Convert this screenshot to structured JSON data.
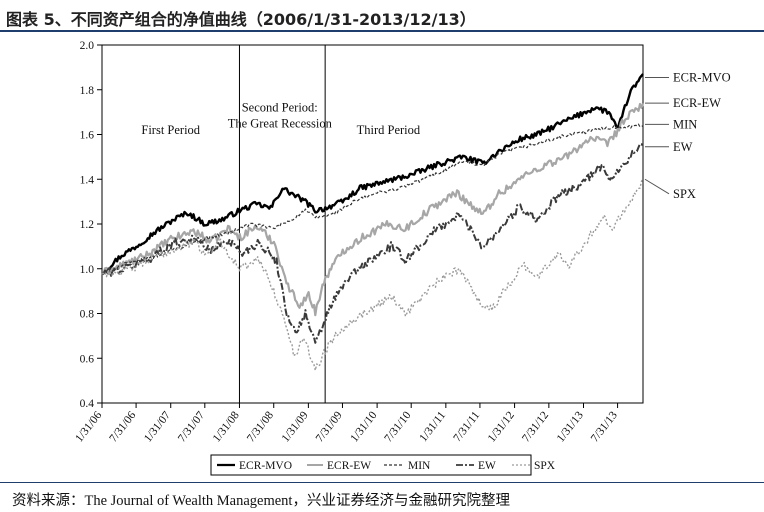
{
  "header": {
    "title": "图表 5、不同资产组合的净值曲线（2006/1/31-2013/12/13）"
  },
  "footer": {
    "source": "资料来源：The Journal of Wealth Management，兴业证券经济与金融研究院整理"
  },
  "chart_data": {
    "type": "line",
    "ylim": [
      0.4,
      2.0
    ],
    "yticks": [
      "0.4",
      "0.6",
      "0.8",
      "1.0",
      "1.2",
      "1.4",
      "1.6",
      "1.8",
      "2.0"
    ],
    "xrange": [
      "2006-01-31",
      "2013-12-13"
    ],
    "xticks": [
      "1/31/06",
      "7/31/06",
      "1/31/07",
      "7/31/07",
      "1/31/08",
      "7/31/08",
      "1/31/09",
      "7/31/09",
      "1/31/10",
      "7/31/10",
      "1/31/11",
      "7/31/11",
      "1/31/12",
      "7/31/12",
      "1/31/13",
      "7/31/13"
    ],
    "period_dividers": [
      "2008-01-31",
      "2009-04-30"
    ],
    "periods": [
      {
        "label": "First Period",
        "center": "2007-01-31",
        "y": 1.62
      },
      {
        "label": "Second Period:",
        "center": "2008-09-01",
        "y": 1.72
      },
      {
        "label": "The Great Recession",
        "center": "2008-09-01",
        "y": 1.65
      },
      {
        "label": "Third Period",
        "center": "2010-04-01",
        "y": 1.62
      }
    ],
    "series": [
      {
        "name": "ECR-MVO",
        "color": "#000000",
        "width": 2.4,
        "dash": "",
        "noise": 0.012,
        "points": [
          [
            "2006-01-31",
            0.98
          ],
          [
            "2006-05-15",
            1.06
          ],
          [
            "2006-08-01",
            1.1
          ],
          [
            "2006-11-01",
            1.16
          ],
          [
            "2007-02-15",
            1.22
          ],
          [
            "2007-05-01",
            1.25
          ],
          [
            "2007-08-01",
            1.2
          ],
          [
            "2007-11-01",
            1.22
          ],
          [
            "2008-01-31",
            1.26
          ],
          [
            "2008-05-01",
            1.29
          ],
          [
            "2008-07-15",
            1.27
          ],
          [
            "2008-09-15",
            1.36
          ],
          [
            "2008-11-15",
            1.33
          ],
          [
            "2009-01-15",
            1.3
          ],
          [
            "2009-03-09",
            1.26
          ],
          [
            "2009-05-01",
            1.27
          ],
          [
            "2009-08-01",
            1.3
          ],
          [
            "2009-11-01",
            1.36
          ],
          [
            "2010-02-01",
            1.38
          ],
          [
            "2010-05-01",
            1.4
          ],
          [
            "2010-08-01",
            1.42
          ],
          [
            "2011-01-01",
            1.47
          ],
          [
            "2011-05-01",
            1.5
          ],
          [
            "2011-08-15",
            1.47
          ],
          [
            "2011-11-01",
            1.52
          ],
          [
            "2012-03-01",
            1.58
          ],
          [
            "2012-06-01",
            1.6
          ],
          [
            "2012-10-01",
            1.65
          ],
          [
            "2013-01-15",
            1.69
          ],
          [
            "2013-04-01",
            1.72
          ],
          [
            "2013-06-15",
            1.7
          ],
          [
            "2013-08-01",
            1.62
          ],
          [
            "2013-10-01",
            1.78
          ],
          [
            "2013-12-13",
            1.87
          ]
        ]
      },
      {
        "name": "ECR-EW",
        "color": "#a6a6a6",
        "width": 2.2,
        "dash": "",
        "noise": 0.018,
        "points": [
          [
            "2006-01-31",
            0.98
          ],
          [
            "2006-06-01",
            1.02
          ],
          [
            "2006-09-01",
            1.05
          ],
          [
            "2007-02-01",
            1.13
          ],
          [
            "2007-06-01",
            1.17
          ],
          [
            "2007-09-01",
            1.12
          ],
          [
            "2007-12-01",
            1.18
          ],
          [
            "2008-02-01",
            1.14
          ],
          [
            "2008-05-01",
            1.19
          ],
          [
            "2008-08-01",
            1.12
          ],
          [
            "2008-10-15",
            0.92
          ],
          [
            "2008-12-15",
            0.84
          ],
          [
            "2009-02-01",
            0.88
          ],
          [
            "2009-03-09",
            0.81
          ],
          [
            "2009-05-01",
            0.96
          ],
          [
            "2009-08-01",
            1.08
          ],
          [
            "2009-12-01",
            1.15
          ],
          [
            "2010-04-01",
            1.2
          ],
          [
            "2010-07-01",
            1.18
          ],
          [
            "2010-12-01",
            1.28
          ],
          [
            "2011-04-01",
            1.34
          ],
          [
            "2011-08-15",
            1.24
          ],
          [
            "2011-11-01",
            1.33
          ],
          [
            "2012-04-01",
            1.42
          ],
          [
            "2012-07-01",
            1.46
          ],
          [
            "2012-11-01",
            1.5
          ],
          [
            "2013-03-01",
            1.58
          ],
          [
            "2013-06-15",
            1.56
          ],
          [
            "2013-09-01",
            1.66
          ],
          [
            "2013-12-13",
            1.74
          ]
        ]
      },
      {
        "name": "MIN",
        "color": "#333333",
        "width": 1.2,
        "dash": "3,2",
        "noise": 0.008,
        "points": [
          [
            "2006-01-31",
            0.98
          ],
          [
            "2006-06-01",
            1.02
          ],
          [
            "2006-12-01",
            1.06
          ],
          [
            "2007-06-01",
            1.12
          ],
          [
            "2007-12-01",
            1.16
          ],
          [
            "2008-04-01",
            1.2
          ],
          [
            "2008-08-01",
            1.18
          ],
          [
            "2008-11-01",
            1.22
          ],
          [
            "2009-01-15",
            1.26
          ],
          [
            "2009-03-09",
            1.23
          ],
          [
            "2009-06-01",
            1.24
          ],
          [
            "2009-10-01",
            1.3
          ],
          [
            "2010-02-01",
            1.34
          ],
          [
            "2010-06-01",
            1.36
          ],
          [
            "2010-12-01",
            1.42
          ],
          [
            "2011-05-01",
            1.48
          ],
          [
            "2011-08-15",
            1.46
          ],
          [
            "2011-12-01",
            1.52
          ],
          [
            "2012-06-01",
            1.56
          ],
          [
            "2012-10-01",
            1.59
          ],
          [
            "2013-02-01",
            1.61
          ],
          [
            "2013-06-01",
            1.63
          ],
          [
            "2013-12-13",
            1.64
          ]
        ]
      },
      {
        "name": "EW",
        "color": "#3a3a3a",
        "width": 2.0,
        "dash": "7,2,2,2",
        "noise": 0.02,
        "points": [
          [
            "2006-01-31",
            0.98
          ],
          [
            "2006-06-01",
            1.0
          ],
          [
            "2006-10-01",
            1.04
          ],
          [
            "2007-02-01",
            1.11
          ],
          [
            "2007-06-01",
            1.14
          ],
          [
            "2007-09-01",
            1.08
          ],
          [
            "2007-12-01",
            1.13
          ],
          [
            "2008-02-15",
            1.07
          ],
          [
            "2008-05-15",
            1.12
          ],
          [
            "2008-08-15",
            1.03
          ],
          [
            "2008-10-15",
            0.78
          ],
          [
            "2008-12-01",
            0.72
          ],
          [
            "2009-01-15",
            0.8
          ],
          [
            "2009-03-09",
            0.66
          ],
          [
            "2009-06-01",
            0.84
          ],
          [
            "2009-09-01",
            0.96
          ],
          [
            "2009-12-15",
            1.03
          ],
          [
            "2010-04-15",
            1.1
          ],
          [
            "2010-07-01",
            1.04
          ],
          [
            "2010-12-15",
            1.18
          ],
          [
            "2011-04-15",
            1.24
          ],
          [
            "2011-08-15",
            1.1
          ],
          [
            "2011-10-01",
            1.14
          ],
          [
            "2012-03-01",
            1.28
          ],
          [
            "2012-06-01",
            1.22
          ],
          [
            "2012-09-15",
            1.32
          ],
          [
            "2013-01-15",
            1.38
          ],
          [
            "2013-05-15",
            1.46
          ],
          [
            "2013-06-25",
            1.4
          ],
          [
            "2013-10-01",
            1.5
          ],
          [
            "2013-12-13",
            1.55
          ]
        ]
      },
      {
        "name": "SPX",
        "color": "#9a9a9a",
        "width": 1.4,
        "dash": "2,2",
        "noise": 0.018,
        "points": [
          [
            "2006-01-31",
            0.98
          ],
          [
            "2006-06-15",
            0.99
          ],
          [
            "2006-12-01",
            1.06
          ],
          [
            "2007-06-01",
            1.12
          ],
          [
            "2007-08-15",
            1.06
          ],
          [
            "2007-10-15",
            1.13
          ],
          [
            "2008-01-31",
            1.0
          ],
          [
            "2008-05-15",
            1.04
          ],
          [
            "2008-07-15",
            0.94
          ],
          [
            "2008-10-15",
            0.72
          ],
          [
            "2008-11-20",
            0.6
          ],
          [
            "2009-01-05",
            0.7
          ],
          [
            "2009-03-09",
            0.55
          ],
          [
            "2009-06-01",
            0.68
          ],
          [
            "2009-09-01",
            0.76
          ],
          [
            "2010-01-01",
            0.82
          ],
          [
            "2010-04-15",
            0.88
          ],
          [
            "2010-07-01",
            0.8
          ],
          [
            "2010-12-15",
            0.94
          ],
          [
            "2011-04-15",
            1.0
          ],
          [
            "2011-08-10",
            0.84
          ],
          [
            "2011-10-03",
            0.82
          ],
          [
            "2012-03-15",
            1.02
          ],
          [
            "2012-06-01",
            0.96
          ],
          [
            "2012-09-15",
            1.07
          ],
          [
            "2012-11-15",
            1.02
          ],
          [
            "2013-03-01",
            1.14
          ],
          [
            "2013-05-20",
            1.24
          ],
          [
            "2013-06-24",
            1.17
          ],
          [
            "2013-09-15",
            1.28
          ],
          [
            "2013-12-13",
            1.4
          ]
        ]
      }
    ],
    "end_labels": [
      {
        "name": "ECR-MVO",
        "y": 1.855,
        "line_from": 1.855
      },
      {
        "name": "ECR-EW",
        "y": 1.74,
        "line_from": 1.74
      },
      {
        "name": "MIN",
        "y": 1.645,
        "line_from": 1.645
      },
      {
        "name": "EW",
        "y": 1.545,
        "line_from": 1.545
      },
      {
        "name": "SPX",
        "y": 1.335,
        "line_from": 1.4
      }
    ],
    "legend": {
      "placement": "bottom-center",
      "items": [
        {
          "name": "ECR-MVO"
        },
        {
          "name": "ECR-EW"
        },
        {
          "name": "MIN"
        },
        {
          "name": "EW"
        },
        {
          "name": "SPX"
        }
      ]
    }
  }
}
